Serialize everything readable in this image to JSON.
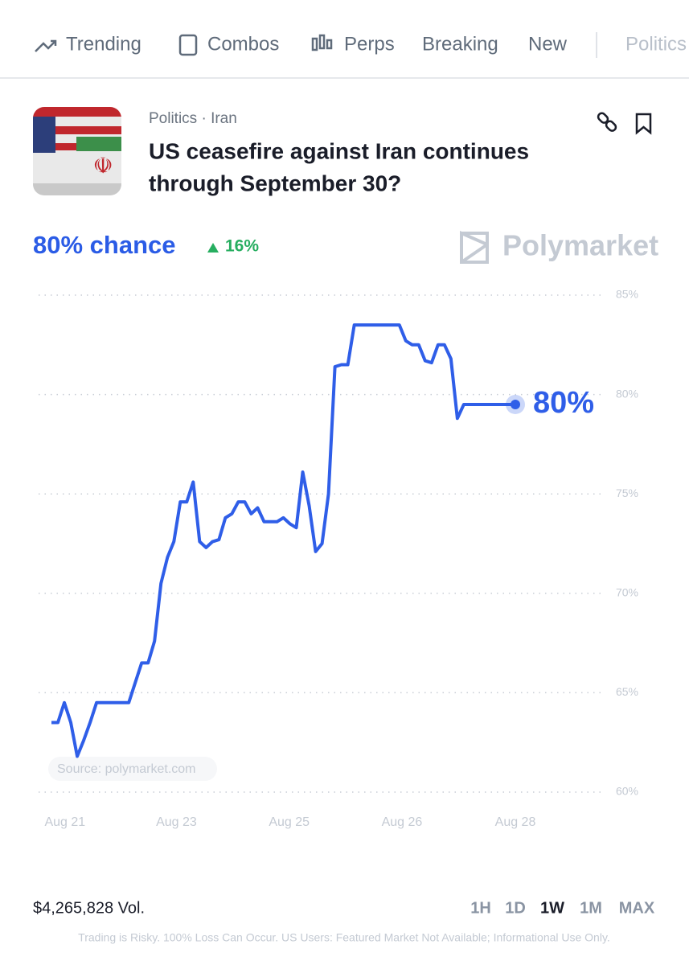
{
  "nav": {
    "items": [
      "Trending",
      "Combos",
      "Perps",
      "Breaking",
      "New",
      "Politics"
    ]
  },
  "market": {
    "breadcrumb": "Politics · Iran",
    "title_line1": "US ceasefire against Iran continues",
    "title_line2": "through September 30?",
    "chance": "80% chance",
    "change": "16%",
    "brand": "Polymarket"
  },
  "chart_data": {
    "type": "line",
    "color": "#2f5ee8",
    "source": "Source: polymarket.com",
    "end_label": "80%",
    "values": [
      63.5,
      63.5,
      64.5,
      63.5,
      61.8,
      62.6,
      63.5,
      64.5,
      64.5,
      64.5,
      64.5,
      64.5,
      64.5,
      65.5,
      66.5,
      66.5,
      67.6,
      70.5,
      71.8,
      72.6,
      74.6,
      74.6,
      75.6,
      72.6,
      72.3,
      72.6,
      72.7,
      73.8,
      74,
      74.6,
      74.6,
      74,
      74.3,
      73.6,
      73.6,
      73.6,
      73.8,
      73.5,
      73.3,
      76.1,
      74.4,
      72.1,
      72.5,
      75,
      81.4,
      81.5,
      81.5,
      83.5,
      83.5,
      83.5,
      83.5,
      83.5,
      83.5,
      83.5,
      83.5,
      82.7,
      82.5,
      82.5,
      81.7,
      81.6,
      82.5,
      82.5,
      81.8,
      78.8,
      79.5,
      79.5,
      79.5,
      79.5,
      79.5,
      79.5,
      79.5,
      79.5,
      79.5
    ],
    "xlim": [
      0,
      72
    ],
    "xticks": [
      {
        "value": 2.1,
        "label": "Aug 21"
      },
      {
        "value": 19.4,
        "label": "Aug 23"
      },
      {
        "value": 36.9,
        "label": "Aug 25"
      },
      {
        "value": 54.4,
        "label": "Aug 26"
      },
      {
        "value": 72,
        "label": "Aug 28"
      }
    ],
    "ylim": [
      60,
      85
    ],
    "yticks": [
      {
        "value": 60,
        "label": "60%"
      },
      {
        "value": 65,
        "label": "65%"
      },
      {
        "value": 70,
        "label": "70%"
      },
      {
        "value": 75,
        "label": "75%"
      },
      {
        "value": 80,
        "label": "80%"
      },
      {
        "value": 85,
        "label": "85%"
      }
    ],
    "grid": true
  },
  "footer": {
    "volume": "$4,265,828 Vol.",
    "ranges": [
      "1H",
      "1D",
      "1W",
      "1M",
      "MAX"
    ],
    "disclaimer": "Trading is Risky. 100% Loss Can Occur. US Users: Featured Market Not Available; Informational Use Only."
  }
}
